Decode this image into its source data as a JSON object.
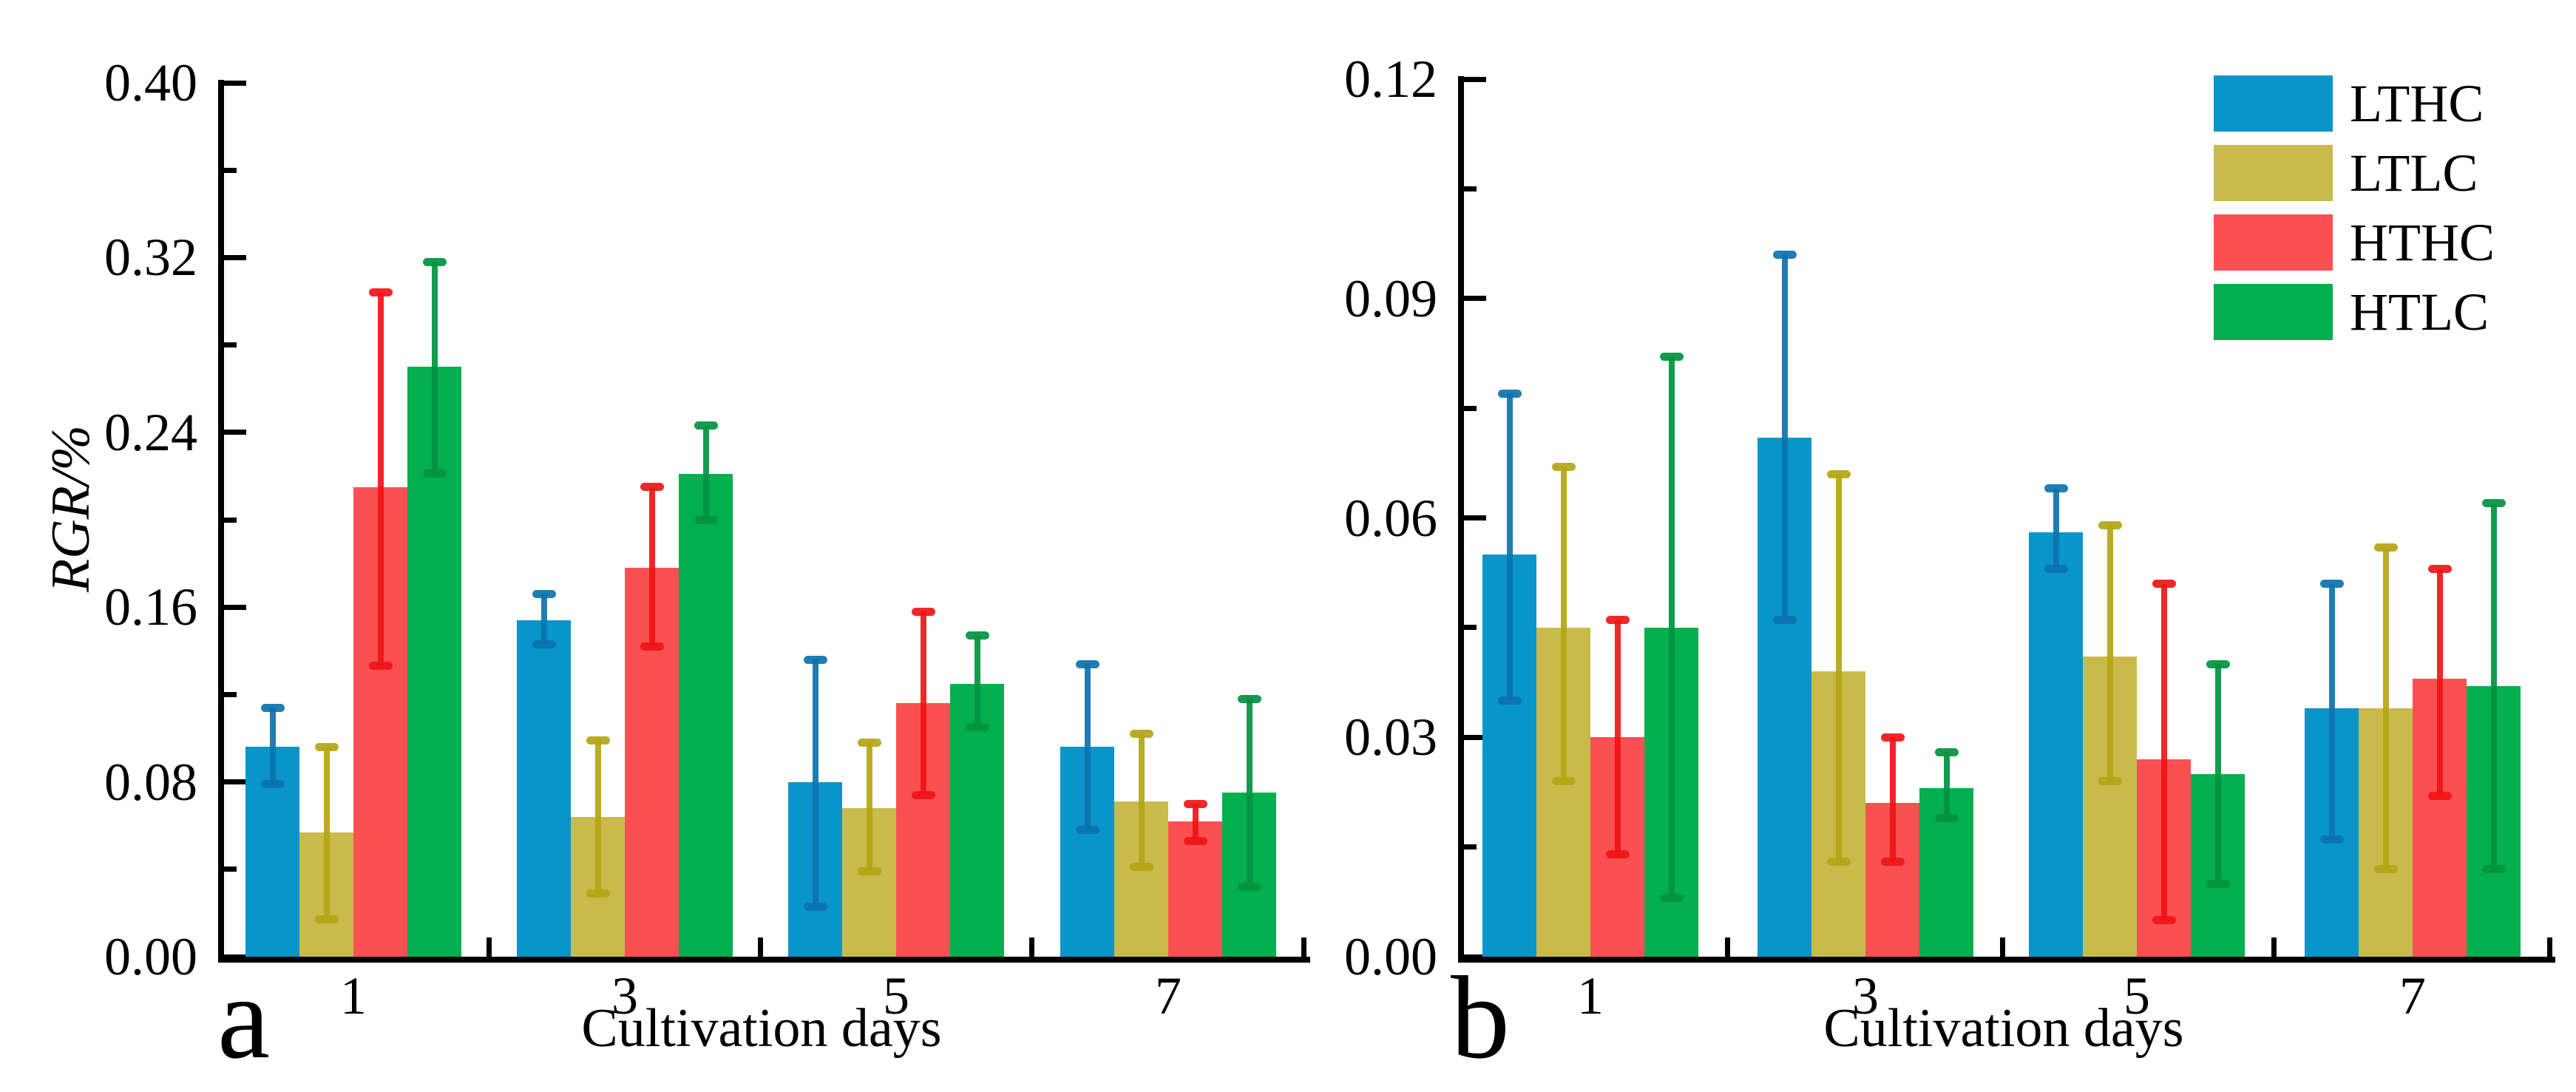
{
  "figure": {
    "background": "#ffffff"
  },
  "axis_color": "#000000",
  "legend": {
    "labels": [
      "LTHC",
      "LTLC",
      "HTHC",
      "HTLC"
    ],
    "position": "top-right"
  },
  "chart_data": [
    {
      "type": "bar",
      "panel_letter": "a",
      "ylabel": "RGR/%",
      "xlabel": "Cultivation days",
      "categories": [
        "1",
        "3",
        "5",
        "7"
      ],
      "ylim": [
        0,
        0.4
      ],
      "ytick_labels": [
        "0.00",
        "0.08",
        "0.16",
        "0.24",
        "0.32",
        "0.40"
      ],
      "minor_ytick_values": [
        0.04,
        0.12,
        0.2,
        0.28,
        0.36
      ],
      "grid": false,
      "error_bars": true,
      "series": [
        {
          "name": "LTHC",
          "color": "#0995C9",
          "err_color": "#0C72AE",
          "values": [
            0.096,
            0.154,
            0.08,
            0.096
          ],
          "err_low": [
            0.079,
            0.143,
            0.023,
            0.058
          ],
          "err_high": [
            0.114,
            0.166,
            0.136,
            0.134
          ]
        },
        {
          "name": "LTLC",
          "color": "#C9BA4B",
          "err_color": "#B4A513",
          "values": [
            0.057,
            0.064,
            0.068,
            0.071
          ],
          "err_low": [
            0.017,
            0.029,
            0.039,
            0.041
          ],
          "err_high": [
            0.096,
            0.099,
            0.098,
            0.102
          ]
        },
        {
          "name": "HTHC",
          "color": "#FB5052",
          "err_color": "#EF1416",
          "values": [
            0.215,
            0.178,
            0.116,
            0.062
          ],
          "err_low": [
            0.133,
            0.142,
            0.074,
            0.053
          ],
          "err_high": [
            0.304,
            0.215,
            0.158,
            0.07
          ]
        },
        {
          "name": "HTLC",
          "color": "#04AF4D",
          "err_color": "#00923F",
          "values": [
            0.27,
            0.221,
            0.125,
            0.075
          ],
          "err_low": [
            0.221,
            0.2,
            0.105,
            0.032
          ],
          "err_high": [
            0.318,
            0.243,
            0.147,
            0.118
          ]
        }
      ]
    },
    {
      "type": "bar",
      "panel_letter": "b",
      "ylabel": "",
      "xlabel": "Cultivation days",
      "categories": [
        "1",
        "3",
        "5",
        "7"
      ],
      "ylim": [
        0,
        0.12
      ],
      "ytick_labels": [
        "0.00",
        "0.03",
        "0.06",
        "0.09",
        "0.12"
      ],
      "minor_ytick_values": [
        0.015,
        0.045,
        0.075,
        0.105
      ],
      "grid": false,
      "error_bars": true,
      "series": [
        {
          "name": "LTHC",
          "color": "#0995C9",
          "err_color": "#0C72AE",
          "values": [
            0.055,
            0.071,
            0.058,
            0.034
          ],
          "err_low": [
            0.035,
            0.046,
            0.053,
            0.016
          ],
          "err_high": [
            0.077,
            0.096,
            0.064,
            0.051
          ]
        },
        {
          "name": "LTLC",
          "color": "#C9BA4B",
          "err_color": "#B4A513",
          "values": [
            0.045,
            0.039,
            0.041,
            0.034
          ],
          "err_low": [
            0.024,
            0.013,
            0.024,
            0.012
          ],
          "err_high": [
            0.067,
            0.066,
            0.059,
            0.056
          ]
        },
        {
          "name": "HTHC",
          "color": "#FB5052",
          "err_color": "#EF1416",
          "values": [
            0.03,
            0.021,
            0.027,
            0.038
          ],
          "err_low": [
            0.014,
            0.013,
            0.005,
            0.022
          ],
          "err_high": [
            0.046,
            0.03,
            0.051,
            0.053
          ]
        },
        {
          "name": "HTLC",
          "color": "#04AF4D",
          "err_color": "#00923F",
          "values": [
            0.045,
            0.023,
            0.025,
            0.037
          ],
          "err_low": [
            0.008,
            0.019,
            0.01,
            0.012
          ],
          "err_high": [
            0.082,
            0.028,
            0.04,
            0.062
          ]
        }
      ]
    }
  ]
}
